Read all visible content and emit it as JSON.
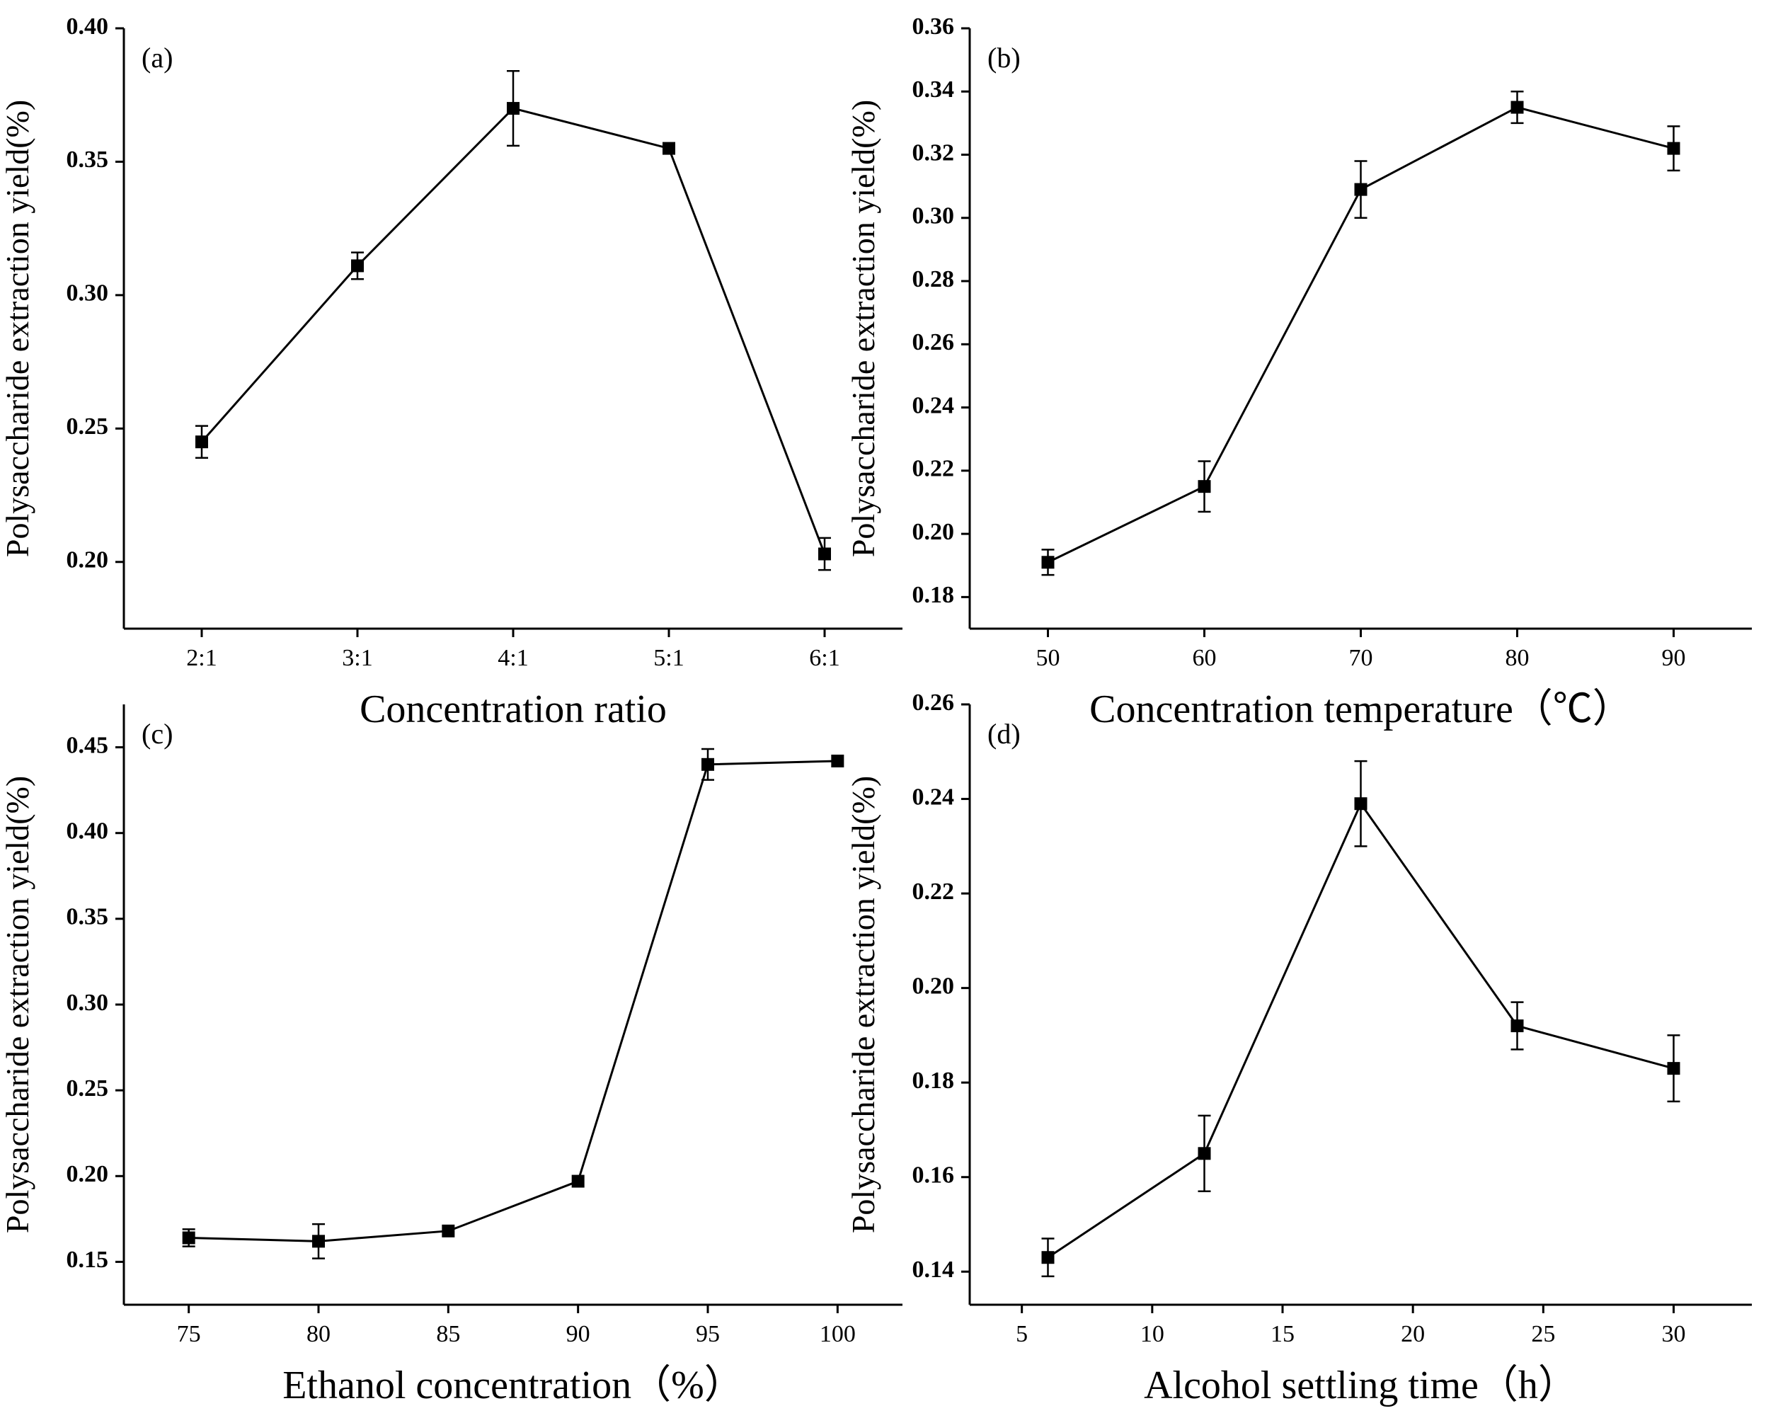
{
  "chart_data": [
    {
      "panel": "(a)",
      "type": "line",
      "categories": [
        "2:1",
        "3:1",
        "4:1",
        "5:1",
        "6:1"
      ],
      "values": [
        0.245,
        0.311,
        0.37,
        0.355,
        0.203
      ],
      "errors": [
        0.006,
        0.005,
        0.014,
        0.0,
        0.006
      ],
      "xlabel": "Concentration ratio",
      "ylabel": "Polysaccharide extraction yield(%)",
      "ylim": [
        0.175,
        0.4
      ],
      "yticks": [
        0.2,
        0.25,
        0.3,
        0.35,
        0.4
      ],
      "ytick_labels": [
        "0.20",
        "0.25",
        "0.30",
        "0.35",
        "0.40"
      ]
    },
    {
      "panel": "(b)",
      "type": "line",
      "x": [
        50,
        60,
        70,
        80,
        90
      ],
      "xlim": [
        45,
        95
      ],
      "xticks": [
        50,
        60,
        70,
        80,
        90
      ],
      "xtick_labels": [
        "50",
        "60",
        "70",
        "80",
        "90"
      ],
      "values": [
        0.191,
        0.215,
        0.309,
        0.335,
        0.322
      ],
      "errors": [
        0.004,
        0.008,
        0.009,
        0.005,
        0.007
      ],
      "xlabel": "Concentration temperature（℃）",
      "ylabel": "Polysaccharide extraction yield(%)",
      "ylim": [
        0.17,
        0.36
      ],
      "yticks": [
        0.18,
        0.2,
        0.22,
        0.24,
        0.26,
        0.28,
        0.3,
        0.32,
        0.34,
        0.36
      ],
      "ytick_labels": [
        "0.18",
        "0.20",
        "0.22",
        "0.24",
        "0.26",
        "0.28",
        "0.30",
        "0.32",
        "0.34",
        "0.36"
      ]
    },
    {
      "panel": "(c)",
      "type": "line",
      "x": [
        75,
        80,
        85,
        90,
        95,
        100
      ],
      "xlim": [
        72.5,
        102.5
      ],
      "xticks": [
        75,
        80,
        85,
        90,
        95,
        100
      ],
      "xtick_labels": [
        "75",
        "80",
        "85",
        "90",
        "95",
        "100"
      ],
      "values": [
        0.164,
        0.162,
        0.168,
        0.197,
        0.44,
        0.442
      ],
      "errors": [
        0.005,
        0.01,
        0.0,
        0.0,
        0.009,
        0.0
      ],
      "xlabel": "Ethanol concentration（%）",
      "ylabel": "Polysaccharide extraction yield(%)",
      "ylim": [
        0.125,
        0.475
      ],
      "yticks": [
        0.15,
        0.2,
        0.25,
        0.3,
        0.35,
        0.4,
        0.45
      ],
      "ytick_labels": [
        "0.15",
        "0.20",
        "0.25",
        "0.30",
        "0.35",
        "0.40",
        "0.45"
      ]
    },
    {
      "panel": "(d)",
      "type": "line",
      "x": [
        6,
        12,
        18,
        24,
        30
      ],
      "xlim": [
        3,
        33
      ],
      "xticks": [
        5,
        10,
        15,
        20,
        25,
        30
      ],
      "xtick_labels": [
        "5",
        "10",
        "15",
        "20",
        "25",
        "30"
      ],
      "values": [
        0.143,
        0.165,
        0.239,
        0.192,
        0.183
      ],
      "errors": [
        0.004,
        0.008,
        0.009,
        0.005,
        0.007
      ],
      "xlabel": "Alcohol settling time（h）",
      "ylabel": "Polysaccharide extraction yield(%)",
      "ylim": [
        0.133,
        0.26
      ],
      "yticks": [
        0.14,
        0.16,
        0.18,
        0.2,
        0.22,
        0.24,
        0.26
      ],
      "ytick_labels": [
        "0.14",
        "0.16",
        "0.18",
        "0.20",
        "0.22",
        "0.24",
        "0.26"
      ]
    }
  ]
}
